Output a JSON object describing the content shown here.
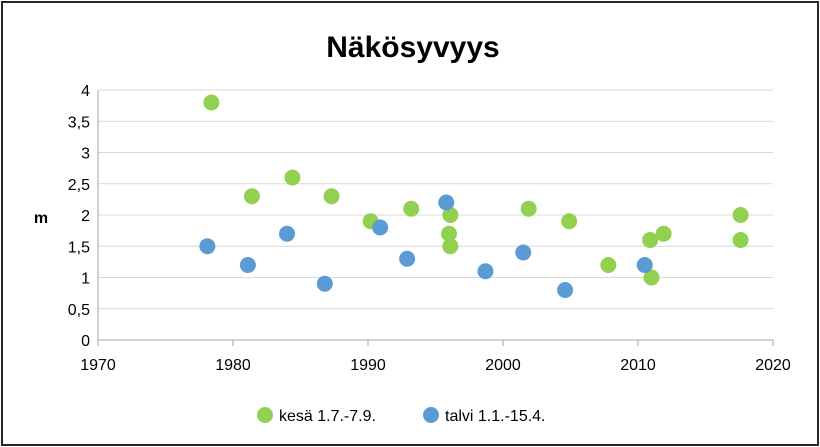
{
  "chart_data": {
    "type": "scatter",
    "title": "Näkösyvyys",
    "ylabel": "m",
    "xlabel": "",
    "xlim": [
      1970,
      2020
    ],
    "ylim": [
      0,
      4
    ],
    "x_ticks": [
      "1970",
      "1980",
      "1990",
      "2000",
      "2010",
      "2020"
    ],
    "y_ticks": [
      "0",
      "0,5",
      "1",
      "1,5",
      "2",
      "2,5",
      "3",
      "3,5",
      "4"
    ],
    "grid": "horizontal",
    "legend_position": "bottom",
    "series": [
      {
        "name": "kesä 1.7.-7.9.",
        "color": "#92D050",
        "points": [
          [
            1978.4,
            3.8
          ],
          [
            1981.4,
            2.3
          ],
          [
            1984.4,
            2.6
          ],
          [
            1987.3,
            2.3
          ],
          [
            1990.2,
            1.9
          ],
          [
            1993.2,
            2.1
          ],
          [
            1996.1,
            2.0
          ],
          [
            1996.0,
            1.7
          ],
          [
            1996.1,
            1.5
          ],
          [
            2001.9,
            2.1
          ],
          [
            2004.9,
            1.9
          ],
          [
            2007.8,
            1.2
          ],
          [
            2010.9,
            1.6
          ],
          [
            2011.0,
            1.0
          ],
          [
            2011.9,
            1.7
          ],
          [
            2017.6,
            2.0
          ],
          [
            2017.6,
            1.6
          ]
        ]
      },
      {
        "name": "talvi 1.1.-15.4.",
        "color": "#5B9BD5",
        "points": [
          [
            1978.1,
            1.5
          ],
          [
            1981.1,
            1.2
          ],
          [
            1984.0,
            1.7
          ],
          [
            1986.8,
            0.9
          ],
          [
            1990.9,
            1.8
          ],
          [
            1992.9,
            1.3
          ],
          [
            1995.8,
            2.2
          ],
          [
            1998.7,
            1.1
          ],
          [
            2001.5,
            1.4
          ],
          [
            2004.6,
            0.8
          ],
          [
            2010.5,
            1.2
          ]
        ]
      }
    ]
  }
}
